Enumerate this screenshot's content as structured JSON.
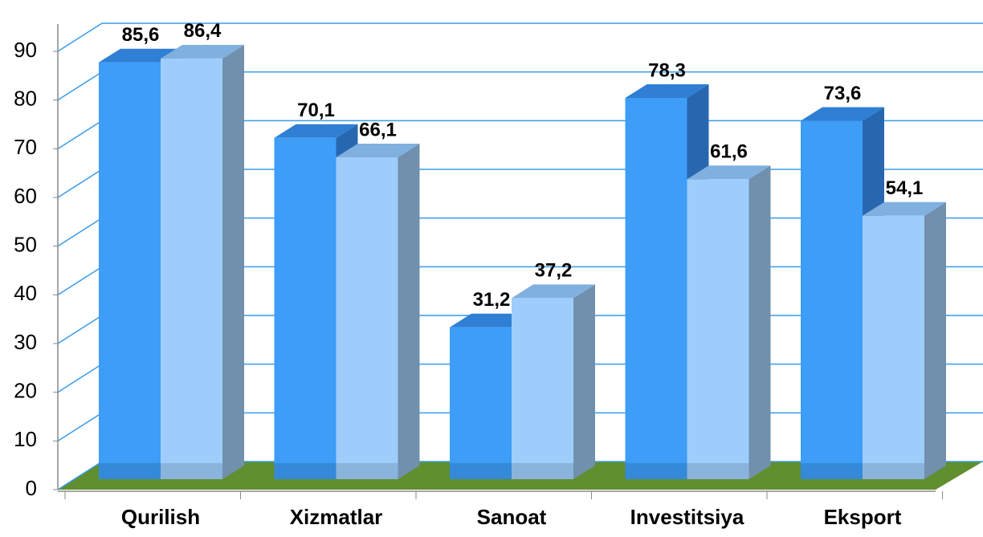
{
  "chart_data": {
    "type": "bar3d",
    "categories": [
      "Qurilish",
      "Xizmatlar",
      "Sanoat",
      "Investitsiya",
      "Eksport"
    ],
    "series": [
      {
        "color": "#3d9df7",
        "values": [
          85.6,
          70.1,
          31.2,
          78.3,
          73.6
        ],
        "value_labels": [
          "85,6",
          "70,1",
          "31,2",
          "78,3",
          "73,6"
        ]
      },
      {
        "color": "#9fcdfb",
        "values": [
          86.4,
          66.1,
          37.2,
          61.6,
          54.1
        ],
        "value_labels": [
          "86,4",
          "66,1",
          "37,2",
          "61,6",
          "54,1"
        ]
      }
    ],
    "ylim": [
      0,
      90
    ],
    "yticks": [
      0,
      10,
      20,
      30,
      40,
      50,
      60,
      70,
      80,
      90
    ],
    "grid": true
  }
}
